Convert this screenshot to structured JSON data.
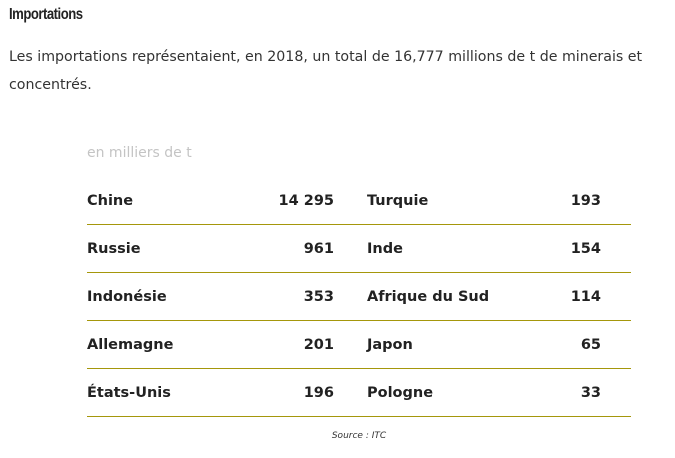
{
  "heading": "Importations",
  "intro": "Les importations représentaient, en 2018, un total de 16,777 millions de t de minerais et concentrés.",
  "unit_note": "en milliers de t",
  "rows": [
    {
      "country1": "Chine",
      "value1": "14 295",
      "country2": "Turquie",
      "value2": "193"
    },
    {
      "country1": "Russie",
      "value1": "961",
      "country2": "Inde",
      "value2": "154"
    },
    {
      "country1": "Indonésie",
      "value1": "353",
      "country2": "Afrique du Sud",
      "value2": "114"
    },
    {
      "country1": "Allemagne",
      "value1": "201",
      "country2": "Japon",
      "value2": "65"
    },
    {
      "country1": "États-Unis",
      "value1": "196",
      "country2": "Pologne",
      "value2": "33"
    }
  ],
  "source": "Source : ITC",
  "colors": {
    "rule": "#a5970b",
    "note": "#c4c4c4",
    "text": "#222222"
  }
}
